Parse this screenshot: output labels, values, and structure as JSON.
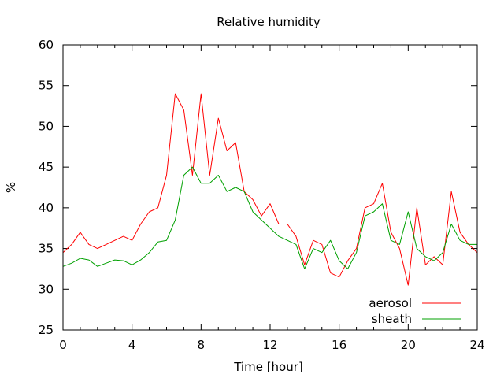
{
  "chart_data": {
    "type": "line",
    "title": "Relative humidity",
    "xlabel": "Time [hour]",
    "ylabel": "%",
    "xlim": [
      0,
      24
    ],
    "ylim": [
      25,
      60
    ],
    "xticks": [
      0,
      4,
      8,
      12,
      16,
      20,
      24
    ],
    "xtick_labels": [
      "0",
      "4",
      "8",
      "12",
      "16",
      "20",
      "24"
    ],
    "yticks": [
      25,
      30,
      35,
      40,
      45,
      50,
      55,
      60
    ],
    "ytick_labels": [
      "25",
      "30",
      "35",
      "40",
      "45",
      "50",
      "55",
      "60"
    ],
    "grid": false,
    "legend_position": "bottom-right",
    "x": [
      0,
      0.5,
      1,
      1.5,
      2,
      2.5,
      3,
      3.5,
      4,
      4.5,
      5,
      5.5,
      6,
      6.5,
      7,
      7.5,
      8,
      8.5,
      9,
      9.5,
      10,
      10.5,
      11,
      11.5,
      12,
      12.5,
      13,
      13.5,
      14,
      14.5,
      15,
      15.5,
      16,
      16.5,
      17,
      17.5,
      18,
      18.5,
      19,
      19.5,
      20,
      20.5,
      21,
      21.5,
      22,
      22.5,
      23,
      23.5,
      24
    ],
    "series": [
      {
        "name": "aerosol",
        "color": "#ff0000",
        "values": [
          34.5,
          35.5,
          37,
          35.5,
          35,
          35.5,
          36,
          36.5,
          36,
          38,
          39.5,
          40,
          44,
          54,
          52,
          44,
          54,
          44,
          51,
          47,
          48,
          42,
          41,
          39,
          40.5,
          38,
          38,
          36.5,
          33,
          36,
          35.5,
          32,
          31.5,
          33.5,
          35,
          40,
          40.5,
          43,
          37,
          35,
          30.5,
          40,
          33,
          34,
          33,
          42,
          37,
          35.5,
          34.5
        ]
      },
      {
        "name": "sheath",
        "color": "#00a000",
        "values": [
          32.8,
          33.2,
          33.8,
          33.6,
          32.8,
          33.2,
          33.6,
          33.5,
          33,
          33.6,
          34.5,
          35.8,
          36,
          38.5,
          44,
          45,
          43,
          43,
          44,
          42,
          42.5,
          42,
          39.5,
          38.5,
          37.5,
          36.5,
          36,
          35.5,
          32.5,
          35,
          34.5,
          36,
          33.5,
          32.5,
          34.5,
          39,
          39.5,
          40.5,
          36,
          35.5,
          39.5,
          35,
          34,
          33.5,
          34.5,
          38,
          36,
          35.5,
          35.5
        ]
      }
    ]
  }
}
